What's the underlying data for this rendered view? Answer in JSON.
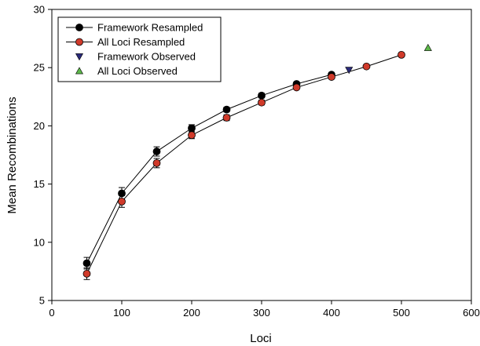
{
  "chart_data": {
    "type": "line",
    "xlabel": "Loci",
    "ylabel": "Mean Recombinations",
    "xlim": [
      0,
      600
    ],
    "ylim": [
      5,
      30
    ],
    "xticks": [
      0,
      100,
      200,
      300,
      400,
      500,
      600
    ],
    "yticks": [
      5,
      10,
      15,
      20,
      25,
      30
    ],
    "xtick_labels": [
      "0",
      "100",
      "200",
      "300",
      "400",
      "500",
      "600"
    ],
    "ytick_labels": [
      "5",
      "10",
      "15",
      "20",
      "25",
      "30"
    ],
    "grid": false,
    "legend_position": "top-left",
    "series": [
      {
        "name": "Framework Resampled",
        "marker": "circle",
        "marker_color": "#000000",
        "line": true,
        "x": [
          50,
          100,
          150,
          200,
          250,
          300,
          350,
          400
        ],
        "y": [
          8.2,
          14.2,
          17.8,
          19.8,
          21.4,
          22.6,
          23.6,
          24.4
        ],
        "err": [
          0.5,
          0.5,
          0.4,
          0.3,
          0.2,
          0.2,
          0.15,
          0.1
        ]
      },
      {
        "name": "All Loci Resampled",
        "marker": "circle",
        "marker_color": "#d03a2a",
        "line": true,
        "x": [
          50,
          100,
          150,
          200,
          250,
          300,
          350,
          400,
          450,
          500
        ],
        "y": [
          7.3,
          13.5,
          16.8,
          19.2,
          20.7,
          22.0,
          23.3,
          24.2,
          25.1,
          26.1
        ],
        "err": [
          0.5,
          0.5,
          0.4,
          0.3,
          0.25,
          0.2,
          0.15,
          0.1,
          0.1,
          0.1
        ]
      },
      {
        "name": "Framework Observed",
        "marker": "triangle-down",
        "marker_color": "#2a2a7a",
        "line": false,
        "x": [
          425
        ],
        "y": [
          24.8
        ],
        "err": []
      },
      {
        "name": "All Loci Observed",
        "marker": "triangle-up",
        "marker_color": "#5db84a",
        "line": false,
        "x": [
          538
        ],
        "y": [
          26.7
        ],
        "err": []
      }
    ]
  }
}
